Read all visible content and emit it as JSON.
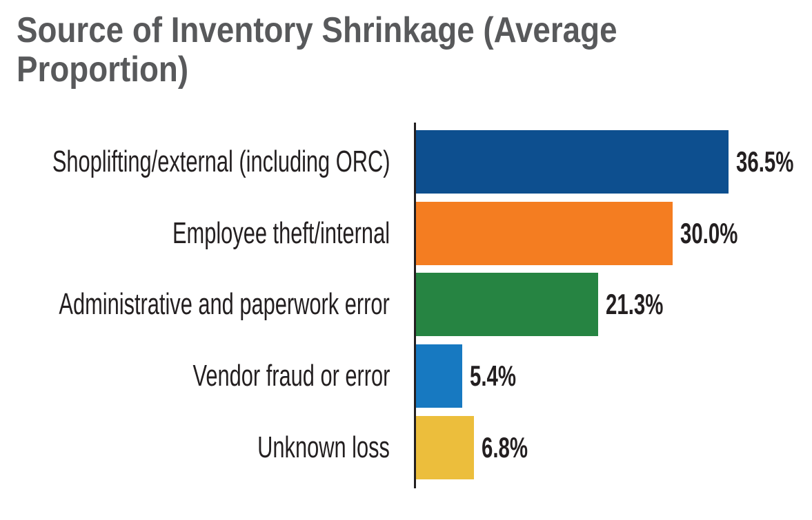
{
  "chart_data": {
    "type": "bar",
    "orientation": "horizontal",
    "title": "Source of Inventory Shrinkage (Average Proportion)",
    "categories": [
      "Shoplifting/external (including ORC)",
      "Employee theft/internal",
      "Administrative and paperwork error",
      "Vendor fraud or error",
      "Unknown loss"
    ],
    "values": [
      36.5,
      30.0,
      21.3,
      5.4,
      6.8
    ],
    "data_labels": [
      "36.5%",
      "30.0%",
      "21.3%",
      "5.4%",
      "6.8%"
    ],
    "bar_colors": [
      "#0d4f8f",
      "#f47d21",
      "#268442",
      "#1779c1",
      "#ecbe3c"
    ],
    "xlim": [
      0,
      36.5
    ],
    "grid": false,
    "legend": "none",
    "colors": {
      "title": "#58595b",
      "label": "#231f20",
      "value": "#231f20",
      "axis": "#231f20",
      "background": "#ffffff"
    }
  }
}
